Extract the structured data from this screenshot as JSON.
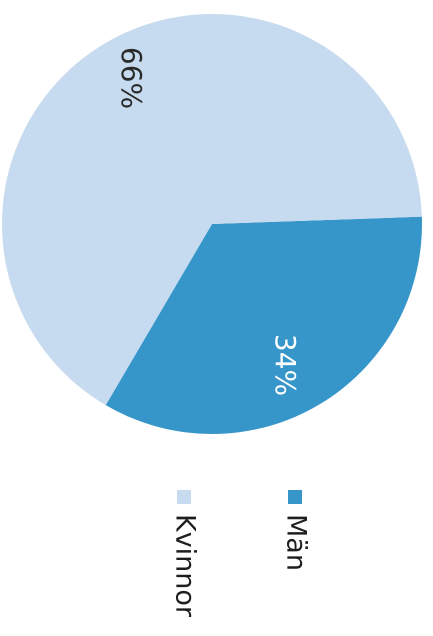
{
  "chart_data": {
    "type": "pie",
    "slices": [
      {
        "label": "Män",
        "value": 34,
        "value_label": "34%",
        "color": "#3796c9"
      },
      {
        "label": "Kvinnor",
        "value": 66,
        "value_label": "66%",
        "color": "#c6dbf0"
      }
    ],
    "legend_placement": "bottom",
    "orientation": "rotated 90° clockwise"
  }
}
